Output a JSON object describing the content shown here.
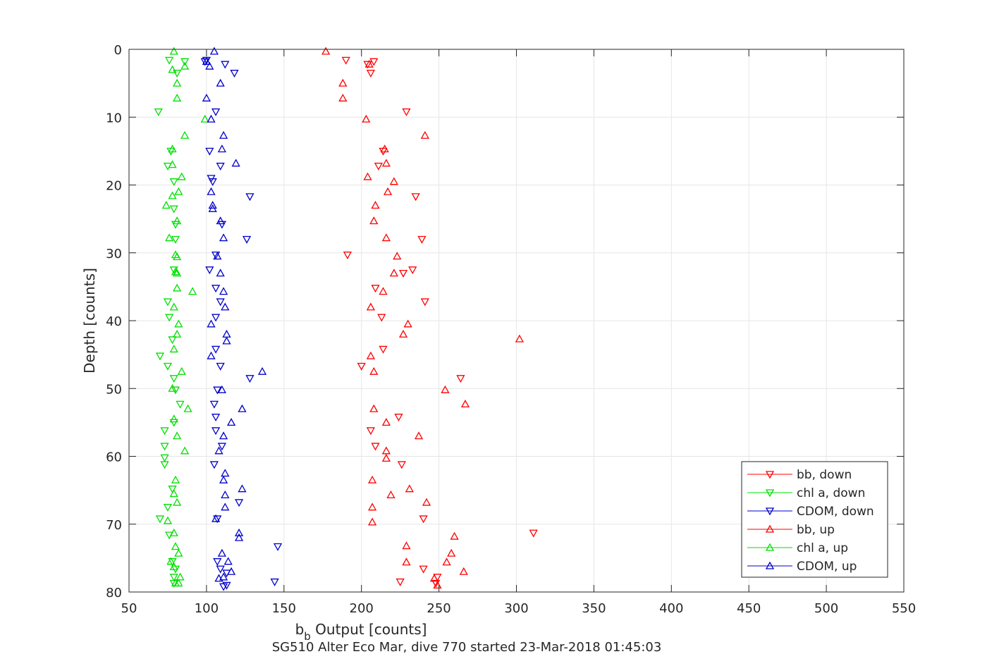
{
  "chart_data": {
    "type": "scatter",
    "xlabel_main": "b",
    "xlabel_sub": "b",
    "xlabel_rest": " Output [counts]",
    "ylabel": "Depth [counts]",
    "caption": "SG510 Alter Eco Mar, dive 770 started 23-Mar-2018 01:45:03",
    "xlim": [
      50,
      550
    ],
    "ylim": [
      0,
      80
    ],
    "y_reversed": true,
    "grid": true,
    "legend_location": "bottom-right",
    "xticks": [
      "50",
      "100",
      "150",
      "200",
      "250",
      "300",
      "350",
      "400",
      "450",
      "500",
      "550"
    ],
    "yticks": [
      "0",
      "10",
      "20",
      "30",
      "40",
      "50",
      "60",
      "70",
      "80"
    ],
    "series": [
      {
        "name": "bb, down",
        "color": "#ff0000",
        "marker": "triangle-down",
        "points": [
          [
            190,
            1.6
          ],
          [
            208,
            1.8
          ],
          [
            204,
            2.2
          ],
          [
            206,
            3.5
          ],
          [
            229,
            9.2
          ],
          [
            214,
            15.0
          ],
          [
            211,
            17.2
          ],
          [
            235,
            21.7
          ],
          [
            239,
            28.0
          ],
          [
            191,
            30.3
          ],
          [
            233,
            32.5
          ],
          [
            209,
            35.2
          ],
          [
            241,
            37.2
          ],
          [
            213,
            39.5
          ],
          [
            214,
            44.2
          ],
          [
            200,
            46.7
          ],
          [
            264,
            48.5
          ],
          [
            224,
            54.2
          ],
          [
            206,
            56.2
          ],
          [
            209,
            58.5
          ],
          [
            226,
            61.2
          ],
          [
            240,
            69.2
          ],
          [
            311,
            71.3
          ],
          [
            240,
            76.6
          ],
          [
            249,
            77.8
          ],
          [
            225,
            78.5
          ],
          [
            248,
            78.7
          ],
          [
            227,
            33.0
          ]
        ]
      },
      {
        "name": "chl a, down",
        "color": "#00e000",
        "marker": "triangle-down",
        "points": [
          [
            76,
            1.6
          ],
          [
            86,
            1.8
          ],
          [
            81,
            3.5
          ],
          [
            69,
            9.2
          ],
          [
            77,
            15.0
          ],
          [
            75,
            17.2
          ],
          [
            79,
            19.5
          ],
          [
            79,
            23.5
          ],
          [
            80,
            25.8
          ],
          [
            80,
            28.0
          ],
          [
            79,
            32.5
          ],
          [
            75,
            37.2
          ],
          [
            76,
            39.5
          ],
          [
            78,
            42.8
          ],
          [
            70,
            45.2
          ],
          [
            75,
            46.7
          ],
          [
            79,
            48.5
          ],
          [
            80,
            50.2
          ],
          [
            83,
            52.3
          ],
          [
            79,
            55.0
          ],
          [
            73,
            56.2
          ],
          [
            73,
            58.5
          ],
          [
            73,
            60.2
          ],
          [
            73,
            61.2
          ],
          [
            78,
            64.8
          ],
          [
            75,
            67.5
          ],
          [
            70,
            69.2
          ],
          [
            76,
            71.6
          ],
          [
            78,
            75.5
          ],
          [
            80,
            76.6
          ],
          [
            79,
            77.8
          ],
          [
            79,
            78.7
          ]
        ]
      },
      {
        "name": "CDOM, down",
        "color": "#0000cc",
        "marker": "triangle-down",
        "points": [
          [
            100,
            1.6
          ],
          [
            99,
            1.8
          ],
          [
            112,
            2.2
          ],
          [
            118,
            3.5
          ],
          [
            106,
            9.2
          ],
          [
            102,
            15.0
          ],
          [
            109,
            17.2
          ],
          [
            103,
            19.0
          ],
          [
            104,
            19.5
          ],
          [
            128,
            21.7
          ],
          [
            110,
            25.8
          ],
          [
            126,
            28.0
          ],
          [
            106,
            30.3
          ],
          [
            102,
            32.5
          ],
          [
            106,
            35.2
          ],
          [
            109,
            37.2
          ],
          [
            106,
            39.5
          ],
          [
            106,
            44.2
          ],
          [
            109,
            46.7
          ],
          [
            128,
            48.5
          ],
          [
            107,
            50.2
          ],
          [
            105,
            52.3
          ],
          [
            106,
            54.2
          ],
          [
            106,
            56.2
          ],
          [
            110,
            58.5
          ],
          [
            105,
            61.2
          ],
          [
            121,
            66.8
          ],
          [
            107,
            69.2
          ],
          [
            146,
            73.3
          ],
          [
            107,
            75.5
          ],
          [
            109,
            76.6
          ],
          [
            113,
            77.2
          ],
          [
            144,
            78.5
          ],
          [
            113,
            79.0
          ],
          [
            111,
            79.2
          ]
        ]
      },
      {
        "name": "bb, up",
        "color": "#ff0000",
        "marker": "triangle-up",
        "points": [
          [
            177,
            0.3
          ],
          [
            205,
            2.2
          ],
          [
            188,
            5.0
          ],
          [
            188,
            7.2
          ],
          [
            203,
            10.3
          ],
          [
            241,
            12.7
          ],
          [
            215,
            14.7
          ],
          [
            216,
            16.8
          ],
          [
            204,
            18.8
          ],
          [
            221,
            19.5
          ],
          [
            217,
            21.0
          ],
          [
            209,
            23.0
          ],
          [
            208,
            25.3
          ],
          [
            216,
            27.8
          ],
          [
            223,
            30.5
          ],
          [
            221,
            33.0
          ],
          [
            214,
            35.7
          ],
          [
            206,
            38.0
          ],
          [
            230,
            40.5
          ],
          [
            227,
            42.0
          ],
          [
            302,
            42.7
          ],
          [
            206,
            45.2
          ],
          [
            208,
            47.5
          ],
          [
            254,
            50.2
          ],
          [
            267,
            52.3
          ],
          [
            208,
            53.0
          ],
          [
            216,
            55.0
          ],
          [
            237,
            57.0
          ],
          [
            216,
            59.2
          ],
          [
            216,
            60.3
          ],
          [
            207,
            63.5
          ],
          [
            231,
            64.8
          ],
          [
            219,
            65.7
          ],
          [
            242,
            66.8
          ],
          [
            207,
            67.5
          ],
          [
            207,
            69.7
          ],
          [
            260,
            71.8
          ],
          [
            229,
            73.2
          ],
          [
            258,
            74.3
          ],
          [
            229,
            75.6
          ],
          [
            255,
            75.6
          ],
          [
            266,
            77.0
          ],
          [
            247,
            78.0
          ],
          [
            249,
            79.0
          ]
        ]
      },
      {
        "name": "chl a, up",
        "color": "#00e000",
        "marker": "triangle-up",
        "points": [
          [
            79,
            0.3
          ],
          [
            86,
            2.5
          ],
          [
            78,
            3.0
          ],
          [
            81,
            5.0
          ],
          [
            81,
            7.2
          ],
          [
            99,
            10.3
          ],
          [
            86,
            12.7
          ],
          [
            78,
            14.7
          ],
          [
            78,
            17.0
          ],
          [
            84,
            18.8
          ],
          [
            82,
            21.0
          ],
          [
            78,
            21.6
          ],
          [
            74,
            23.0
          ],
          [
            81,
            25.3
          ],
          [
            76,
            27.8
          ],
          [
            80,
            30.3
          ],
          [
            81,
            30.6
          ],
          [
            80,
            32.8
          ],
          [
            81,
            33.0
          ],
          [
            81,
            35.2
          ],
          [
            91,
            35.7
          ],
          [
            79,
            38.0
          ],
          [
            82,
            40.5
          ],
          [
            81,
            42.0
          ],
          [
            79,
            44.2
          ],
          [
            84,
            47.5
          ],
          [
            78,
            50.0
          ],
          [
            88,
            53.0
          ],
          [
            79,
            54.5
          ],
          [
            81,
            57.0
          ],
          [
            86,
            59.2
          ],
          [
            80,
            63.5
          ],
          [
            79,
            65.5
          ],
          [
            81,
            66.8
          ],
          [
            75,
            69.5
          ],
          [
            79,
            71.3
          ],
          [
            80,
            73.3
          ],
          [
            82,
            74.3
          ],
          [
            77,
            75.5
          ],
          [
            79,
            76.3
          ],
          [
            83,
            77.8
          ],
          [
            80,
            78.7
          ],
          [
            82,
            78.7
          ]
        ]
      },
      {
        "name": "CDOM, up",
        "color": "#0000cc",
        "marker": "triangle-up",
        "points": [
          [
            105,
            0.3
          ],
          [
            100,
            1.8
          ],
          [
            102,
            2.5
          ],
          [
            109,
            5.0
          ],
          [
            100,
            7.2
          ],
          [
            103,
            10.3
          ],
          [
            111,
            12.7
          ],
          [
            110,
            14.7
          ],
          [
            119,
            16.8
          ],
          [
            103,
            21.0
          ],
          [
            104,
            23.0
          ],
          [
            104,
            23.5
          ],
          [
            109,
            25.3
          ],
          [
            111,
            27.8
          ],
          [
            107,
            30.5
          ],
          [
            109,
            33.0
          ],
          [
            111,
            35.7
          ],
          [
            112,
            38.0
          ],
          [
            103,
            40.5
          ],
          [
            113,
            42.0
          ],
          [
            113,
            43.0
          ],
          [
            103,
            45.2
          ],
          [
            136,
            47.5
          ],
          [
            110,
            50.2
          ],
          [
            123,
            53.0
          ],
          [
            116,
            55.0
          ],
          [
            111,
            57.0
          ],
          [
            108,
            59.2
          ],
          [
            112,
            62.5
          ],
          [
            111,
            63.5
          ],
          [
            123,
            64.8
          ],
          [
            112,
            65.7
          ],
          [
            112,
            67.5
          ],
          [
            106,
            69.2
          ],
          [
            121,
            71.3
          ],
          [
            121,
            72.0
          ],
          [
            110,
            74.3
          ],
          [
            114,
            75.5
          ],
          [
            116,
            77.0
          ],
          [
            111,
            77.8
          ],
          [
            108,
            78.0
          ]
        ]
      }
    ]
  }
}
